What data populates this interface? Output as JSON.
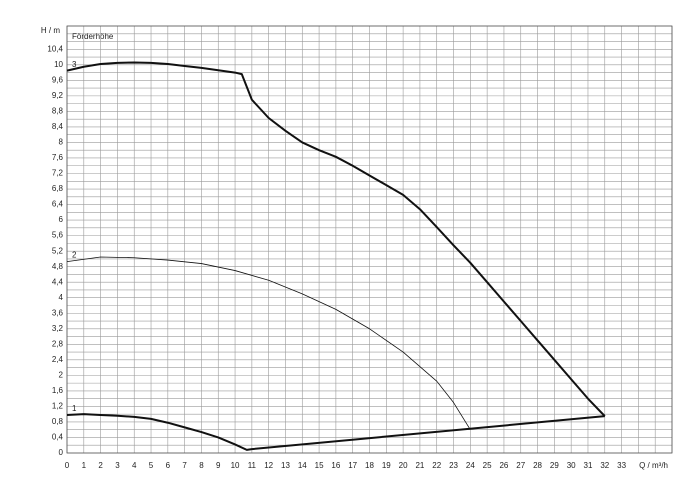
{
  "chart_data": {
    "type": "line",
    "ylabel": "H / m",
    "xlabel": "Q / m³/h",
    "annotation": "Förderhöhe",
    "xlim": [
      0,
      36
    ],
    "ylim": [
      0,
      11
    ],
    "xticks": [
      0,
      1,
      2,
      3,
      4,
      5,
      6,
      7,
      8,
      9,
      10,
      11,
      12,
      13,
      14,
      15,
      16,
      17,
      18,
      19,
      20,
      21,
      22,
      23,
      24,
      25,
      26,
      27,
      28,
      29,
      30,
      31,
      32,
      33
    ],
    "xgrid": [
      0,
      1,
      2,
      3,
      4,
      5,
      6,
      7,
      8,
      9,
      10,
      11,
      12,
      13,
      14,
      15,
      16,
      17,
      18,
      19,
      20,
      21,
      22,
      23,
      24,
      25,
      26,
      27,
      28,
      29,
      30,
      31,
      32,
      33,
      34,
      35,
      36
    ],
    "yticks": [
      0,
      {
        "value": 0.4,
        "label": "0,4"
      },
      {
        "value": 0.8,
        "label": "0,8"
      },
      {
        "value": 1.2,
        "label": "1,2"
      },
      {
        "value": 1.6,
        "label": "1,6"
      },
      2,
      {
        "value": 2.4,
        "label": "2,4"
      },
      {
        "value": 2.8,
        "label": "2,8"
      },
      {
        "value": 3.2,
        "label": "3,2"
      },
      {
        "value": 3.6,
        "label": "3,6"
      },
      4,
      {
        "value": 4.4,
        "label": "4,4"
      },
      {
        "value": 4.8,
        "label": "4,8"
      },
      {
        "value": 5.2,
        "label": "5,2"
      },
      {
        "value": 5.6,
        "label": "5,6"
      },
      6,
      {
        "value": 6.4,
        "label": "6,4"
      },
      {
        "value": 6.8,
        "label": "6,8"
      },
      {
        "value": 7.2,
        "label": "7,2"
      },
      {
        "value": 7.6,
        "label": "7,6"
      },
      8,
      {
        "value": 8.4,
        "label": "8,4"
      },
      {
        "value": 8.8,
        "label": "8,8"
      },
      {
        "value": 9.2,
        "label": "9,2"
      },
      {
        "value": 9.6,
        "label": "9,6"
      },
      10,
      {
        "value": 10.4,
        "label": "10,4"
      }
    ],
    "ygrid": [
      0,
      0.2,
      0.4,
      0.6,
      0.8,
      1,
      1.2,
      1.4,
      1.6,
      1.8,
      2,
      2.2,
      2.4,
      2.6,
      2.8,
      3,
      3.2,
      3.4,
      3.6,
      3.8,
      4,
      4.2,
      4.4,
      4.6,
      4.8,
      5,
      5.2,
      5.4,
      5.6,
      5.8,
      6,
      6.2,
      6.4,
      6.6,
      6.8,
      7,
      7.2,
      7.4,
      7.6,
      7.8,
      8,
      8.2,
      8.4,
      8.6,
      8.8,
      9,
      9.2,
      9.4,
      9.6,
      9.8,
      10,
      10.2,
      10.4,
      10.6,
      10.8,
      11
    ],
    "grid": true,
    "series": [
      {
        "name": "1",
        "color": "#111111",
        "width": 2,
        "x": [
          0,
          1,
          2,
          3,
          4,
          5,
          6,
          7,
          8,
          9,
          10,
          10.7,
          11,
          32
        ],
        "values": [
          0.98,
          1.0,
          0.98,
          0.96,
          0.93,
          0.88,
          0.78,
          0.66,
          0.54,
          0.4,
          0.22,
          0.08,
          0.1,
          0.95
        ]
      },
      {
        "name": "2",
        "color": "#111111",
        "width": 0.8,
        "x": [
          0,
          2,
          4,
          6,
          8,
          10,
          12,
          14,
          16,
          18,
          20,
          22,
          23,
          24
        ],
        "values": [
          4.93,
          5.05,
          5.03,
          4.97,
          4.88,
          4.7,
          4.45,
          4.1,
          3.7,
          3.2,
          2.6,
          1.85,
          1.3,
          0.6
        ]
      },
      {
        "name": "3",
        "color": "#111111",
        "width": 2,
        "x": [
          0,
          1,
          2,
          3,
          4,
          5,
          6,
          7,
          8,
          9,
          10,
          10.4,
          11,
          12,
          13,
          14,
          15,
          16,
          17,
          18,
          19,
          20,
          21,
          22,
          23,
          24,
          25,
          26,
          27,
          28,
          29,
          30,
          31,
          32
        ],
        "values": [
          9.85,
          9.95,
          10.02,
          10.05,
          10.06,
          10.05,
          10.02,
          9.97,
          9.92,
          9.86,
          9.8,
          9.76,
          9.1,
          8.63,
          8.3,
          8.0,
          7.8,
          7.63,
          7.4,
          7.15,
          6.9,
          6.65,
          6.28,
          5.82,
          5.35,
          4.9,
          4.4,
          3.9,
          3.4,
          2.9,
          2.4,
          1.9,
          1.4,
          0.95
        ]
      }
    ]
  }
}
